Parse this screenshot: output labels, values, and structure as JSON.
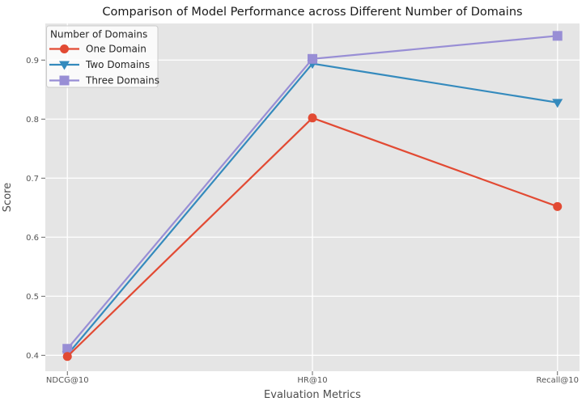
{
  "chart_data": {
    "type": "line",
    "title": "Comparison of Model Performance across Different Number of Domains",
    "xlabel": "Evaluation Metrics",
    "ylabel": "Score",
    "categories": [
      "NDCG@10",
      "HR@10",
      "Recall@10"
    ],
    "series": [
      {
        "name": "One Domain",
        "marker": "circle-icon",
        "color": "#E24A33",
        "values": [
          0.398,
          0.802,
          0.652
        ]
      },
      {
        "name": "Two Domains",
        "marker": "triangle-down-icon",
        "color": "#348ABD",
        "values": [
          0.401,
          0.894,
          0.828
        ]
      },
      {
        "name": "Three Domains",
        "marker": "square-icon",
        "color": "#988ED5",
        "values": [
          0.411,
          0.902,
          0.941
        ]
      }
    ],
    "legend": {
      "title": "Number of Domains",
      "position": "upper-left",
      "entries": [
        "One Domain",
        "Two Domains",
        "Three Domains"
      ]
    },
    "yticks": [
      0.4,
      0.5,
      0.6,
      0.7,
      0.8,
      0.9
    ],
    "ylim": [
      0.373,
      0.962
    ],
    "xlim": [
      -0.09,
      2.09
    ],
    "grid": true,
    "colors": {
      "figure_bg": "#FFFFFF",
      "plot_bg": "#E5E5E5",
      "grid": "#FFFFFF",
      "tick_label": "#555555",
      "axis_label": "#4D4D4D",
      "title": "#1A1A1A",
      "legend_bg": "rgba(255,255,255,0.8)",
      "legend_border": "#CCCCCC",
      "legend_text": "#262626",
      "tick_mark": "#555555"
    }
  }
}
